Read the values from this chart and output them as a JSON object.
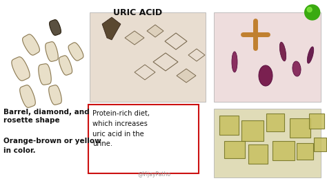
{
  "title": "URIC ACID",
  "title_fontsize": 9,
  "bg_color": "#ffffff",
  "text_left_top": "Barrel, diamond, and\nrosette shape",
  "text_left_bottom": "Orange-brown or yellow\nin color.",
  "text_box_content": "Protein-rich diet,\nwhich increases\nuric acid in the\nurine.",
  "watermark": "@VijayPatho",
  "green_dot_color": "#3aaa10",
  "text_box_border_color": "#cc1111",
  "text_color": "#111111",
  "img1_color": "#e8ddd0",
  "img2_color": "#eedddd",
  "img3_color": "#e0dcb8",
  "crystal_fill": "#f0e8d0",
  "crystal_edge": "#555040",
  "crystal_dark_fill": "#5a5040",
  "crystal_dark_edge": "#2a2010"
}
